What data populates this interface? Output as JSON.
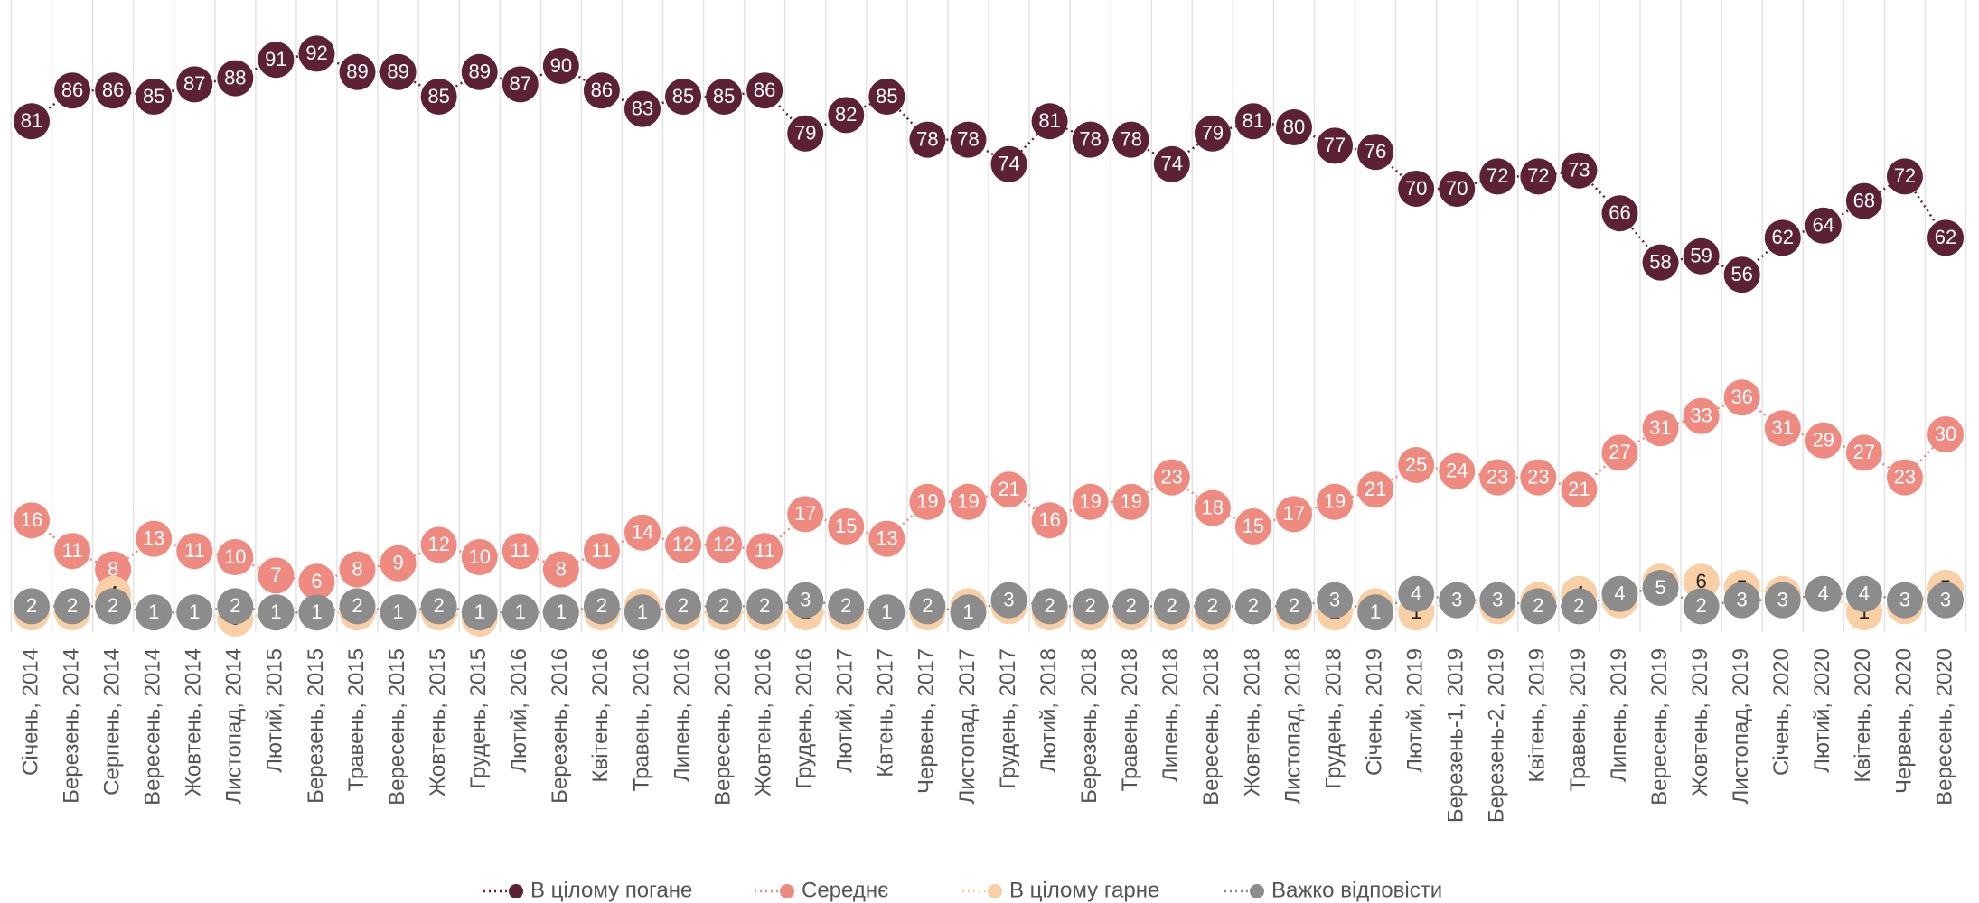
{
  "chart_data": {
    "type": "line",
    "categories": [
      "Січень, 2014",
      "Березень, 2014",
      "Серпень, 2014",
      "Вересень, 2014",
      "Жовтень, 2014",
      "Листопад, 2014",
      "Лютий, 2015",
      "Березень, 2015",
      "Травень, 2015",
      "Вересень, 2015",
      "Жовтень, 2015",
      "Грудень, 2015",
      "Лютий, 2016",
      "Березень, 2016",
      "Квітень, 2016",
      "Травень, 2016",
      "Липень, 2016",
      "Вересень, 2016",
      "Жовтень, 2016",
      "Грудень, 2016",
      "Лютий, 2017",
      "Квтень, 2017",
      "Червень, 2017",
      "Листопад, 2017",
      "Грудень, 2017",
      "Лютий, 2018",
      "Березень, 2018",
      "Травень, 2018",
      "Липень, 2018",
      "Вересень, 2018",
      "Жовтень, 2018",
      "Листопад, 2018",
      "Грудень, 2018",
      "Січень, 2019",
      "Лютий, 2019",
      "Березень-1, 2019",
      "Березень-2, 2019",
      "Квітень, 2019",
      "Травень, 2019",
      "Липень, 2019",
      "Вересень, 2019",
      "Жовтень, 2019",
      "Листопад, 2019",
      "Січень, 2020",
      "Лютий, 2020",
      "Квітень, 2020",
      "Червень, 2020",
      "Вересень, 2020"
    ],
    "series": [
      {
        "name": "В цілому погане",
        "color": "#5c2233",
        "label_color": "#ffffff",
        "values": [
          81,
          86,
          86,
          85,
          87,
          88,
          91,
          92,
          89,
          89,
          85,
          89,
          87,
          90,
          86,
          83,
          85,
          85,
          86,
          79,
          82,
          85,
          78,
          78,
          74,
          81,
          78,
          78,
          74,
          79,
          81,
          80,
          77,
          76,
          70,
          70,
          72,
          72,
          73,
          66,
          58,
          59,
          56,
          62,
          64,
          68,
          72,
          62
        ]
      },
      {
        "name": "Середнє",
        "color": "#ef8a80",
        "label_color": "#ffffff",
        "values": [
          16,
          11,
          8,
          13,
          11,
          10,
          7,
          6,
          8,
          9,
          12,
          10,
          11,
          8,
          11,
          14,
          12,
          12,
          11,
          17,
          15,
          13,
          19,
          19,
          21,
          16,
          19,
          19,
          23,
          18,
          15,
          17,
          19,
          21,
          25,
          24,
          23,
          23,
          21,
          27,
          31,
          33,
          36,
          31,
          29,
          27,
          23,
          30
        ]
      },
      {
        "name": "В цілому гарне",
        "color": "#f9cfa5",
        "label_color": "#222222",
        "values": [
          1,
          1,
          4,
          1,
          1,
          0,
          1,
          1,
          1,
          1,
          1,
          0,
          1,
          1,
          1,
          2,
          1,
          1,
          1,
          1,
          1,
          1,
          1,
          2,
          2,
          1,
          1,
          1,
          1,
          1,
          2,
          1,
          1,
          2,
          1,
          3,
          2,
          3,
          4,
          3,
          6,
          6,
          5,
          4,
          4,
          1,
          2,
          5
        ]
      },
      {
        "name": "Важко відповісти",
        "color": "#8c8c8c",
        "label_color": "#ffffff",
        "values": [
          2,
          2,
          2,
          1,
          1,
          2,
          1,
          1,
          2,
          1,
          2,
          1,
          1,
          1,
          2,
          1,
          2,
          2,
          2,
          3,
          2,
          1,
          2,
          1,
          3,
          2,
          2,
          2,
          2,
          2,
          2,
          2,
          3,
          1,
          4,
          3,
          3,
          2,
          2,
          4,
          5,
          2,
          3,
          3,
          4,
          4,
          3,
          3
        ]
      }
    ],
    "ylim": [
      0,
      100
    ],
    "grid": true,
    "legend": "bottom"
  }
}
